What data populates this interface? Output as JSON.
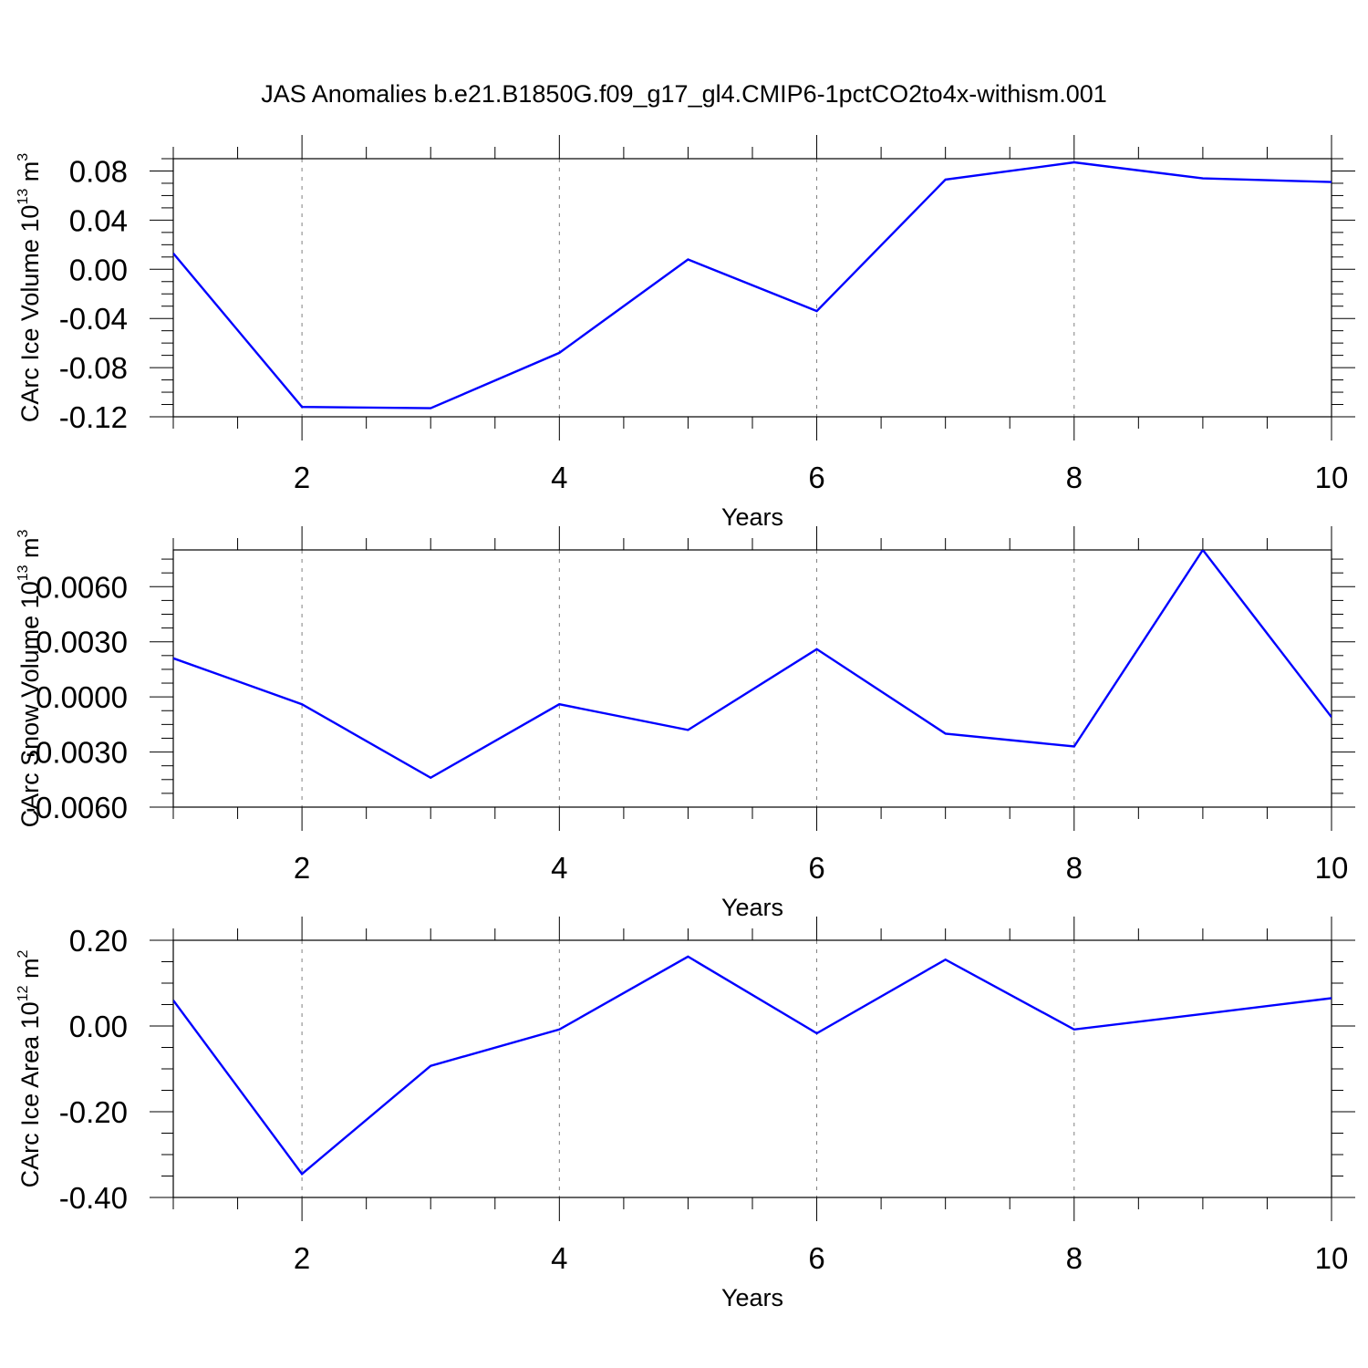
{
  "title": "JAS Anomalies b.e21.B1850G.f09_g17_gl4.CMIP6-1pctCO2to4x-withism.001",
  "colors": {
    "line": "#0000ff",
    "axis": "#000000",
    "grid": "#808080"
  },
  "chart_data": [
    {
      "type": "line",
      "ylabel": "CArc Ice Volume 10",
      "ylabel_exp": "13",
      "ylabel_unit": " m",
      "ylabel_unit_exp": "3",
      "xlabel": "Years",
      "xlim": [
        1,
        10
      ],
      "ylim": [
        -0.12,
        0.09
      ],
      "xticks": [
        "2",
        "4",
        "6",
        "8",
        "10"
      ],
      "yticks": [
        "0.08",
        "0.04",
        "0.00",
        "-0.04",
        "-0.08",
        "-0.12"
      ],
      "x": [
        1,
        2,
        3,
        4,
        5,
        6,
        7,
        8,
        9,
        10
      ],
      "series": [
        {
          "values": [
            0.013,
            -0.112,
            -0.113,
            -0.068,
            0.008,
            -0.034,
            0.073,
            0.087,
            0.074,
            0.071
          ]
        }
      ]
    },
    {
      "type": "line",
      "ylabel": "CArc Snow Volume 10",
      "ylabel_exp": "13",
      "ylabel_unit": " m",
      "ylabel_unit_exp": "3",
      "xlabel": "Years",
      "xlim": [
        1,
        10
      ],
      "ylim": [
        -0.006,
        0.008
      ],
      "xticks": [
        "2",
        "4",
        "6",
        "8",
        "10"
      ],
      "yticks": [
        "0.0060",
        "0.0030",
        "0.0000",
        "-0.0030",
        "-0.0060"
      ],
      "x": [
        1,
        2,
        3,
        4,
        5,
        6,
        7,
        8,
        9,
        10
      ],
      "series": [
        {
          "values": [
            0.0021,
            -0.0004,
            -0.0044,
            -0.0004,
            -0.0018,
            0.0026,
            -0.002,
            -0.0027,
            0.008,
            -0.0011
          ]
        }
      ]
    },
    {
      "type": "line",
      "ylabel": "CArc Ice Area 10",
      "ylabel_exp": "12",
      "ylabel_unit": " m",
      "ylabel_unit_exp": "2",
      "xlabel": "Years",
      "xlim": [
        1,
        10
      ],
      "ylim": [
        -0.4,
        0.2
      ],
      "xticks": [
        "2",
        "4",
        "6",
        "8",
        "10"
      ],
      "yticks": [
        "0.20",
        "0.00",
        "-0.20",
        "-0.40"
      ],
      "x": [
        1,
        2,
        3,
        4,
        5,
        6,
        7,
        8,
        9,
        10
      ],
      "series": [
        {
          "values": [
            0.06,
            -0.345,
            -0.093,
            -0.008,
            0.162,
            -0.017,
            0.155,
            -0.008,
            0.028,
            0.065
          ]
        }
      ]
    }
  ]
}
